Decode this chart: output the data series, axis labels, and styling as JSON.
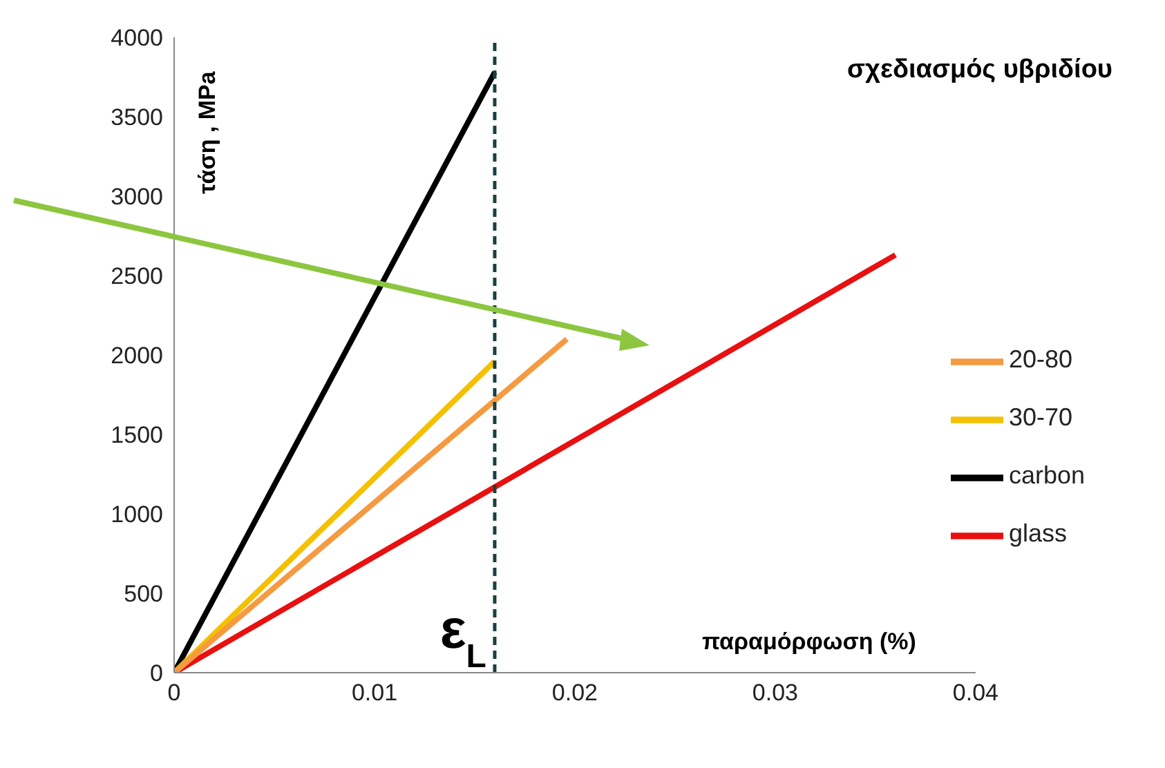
{
  "chart_data": {
    "type": "line",
    "title": "σχεδιασμός υβριδίου",
    "xlabel": "παραμόρφωση (%)",
    "ylabel": "τάση , MPa",
    "xlim": [
      0,
      0.04
    ],
    "xticks": [
      0,
      0.01,
      0.02,
      0.03,
      0.04
    ],
    "ylim": [
      0,
      4000
    ],
    "yticks": [
      0,
      500,
      1000,
      1500,
      2000,
      2500,
      3000,
      3500,
      4000
    ],
    "grid": false,
    "legend": "right",
    "marker": "none",
    "line_style": "solid",
    "series": [
      {
        "name": "carbon",
        "color": "#000000",
        "x": [
          0,
          0.016
        ],
        "values": [
          0,
          3780
        ]
      },
      {
        "name": "glass",
        "color": "#e81010",
        "x": [
          0,
          0.036
        ],
        "values": [
          0,
          2630
        ]
      },
      {
        "name": "30-70",
        "color": "#f5c000",
        "x": [
          0,
          0.016
        ],
        "values": [
          0,
          1960
        ]
      },
      {
        "name": "20-80",
        "color": "#f59a40",
        "x": [
          0,
          0.0196
        ],
        "values": [
          0,
          2100
        ]
      }
    ],
    "ref_lines": [
      {
        "axis": "x",
        "value": 0.016,
        "label": "ε$_{L}$",
        "color": "#1a4040",
        "line_style": "dashed"
      }
    ]
  }
}
